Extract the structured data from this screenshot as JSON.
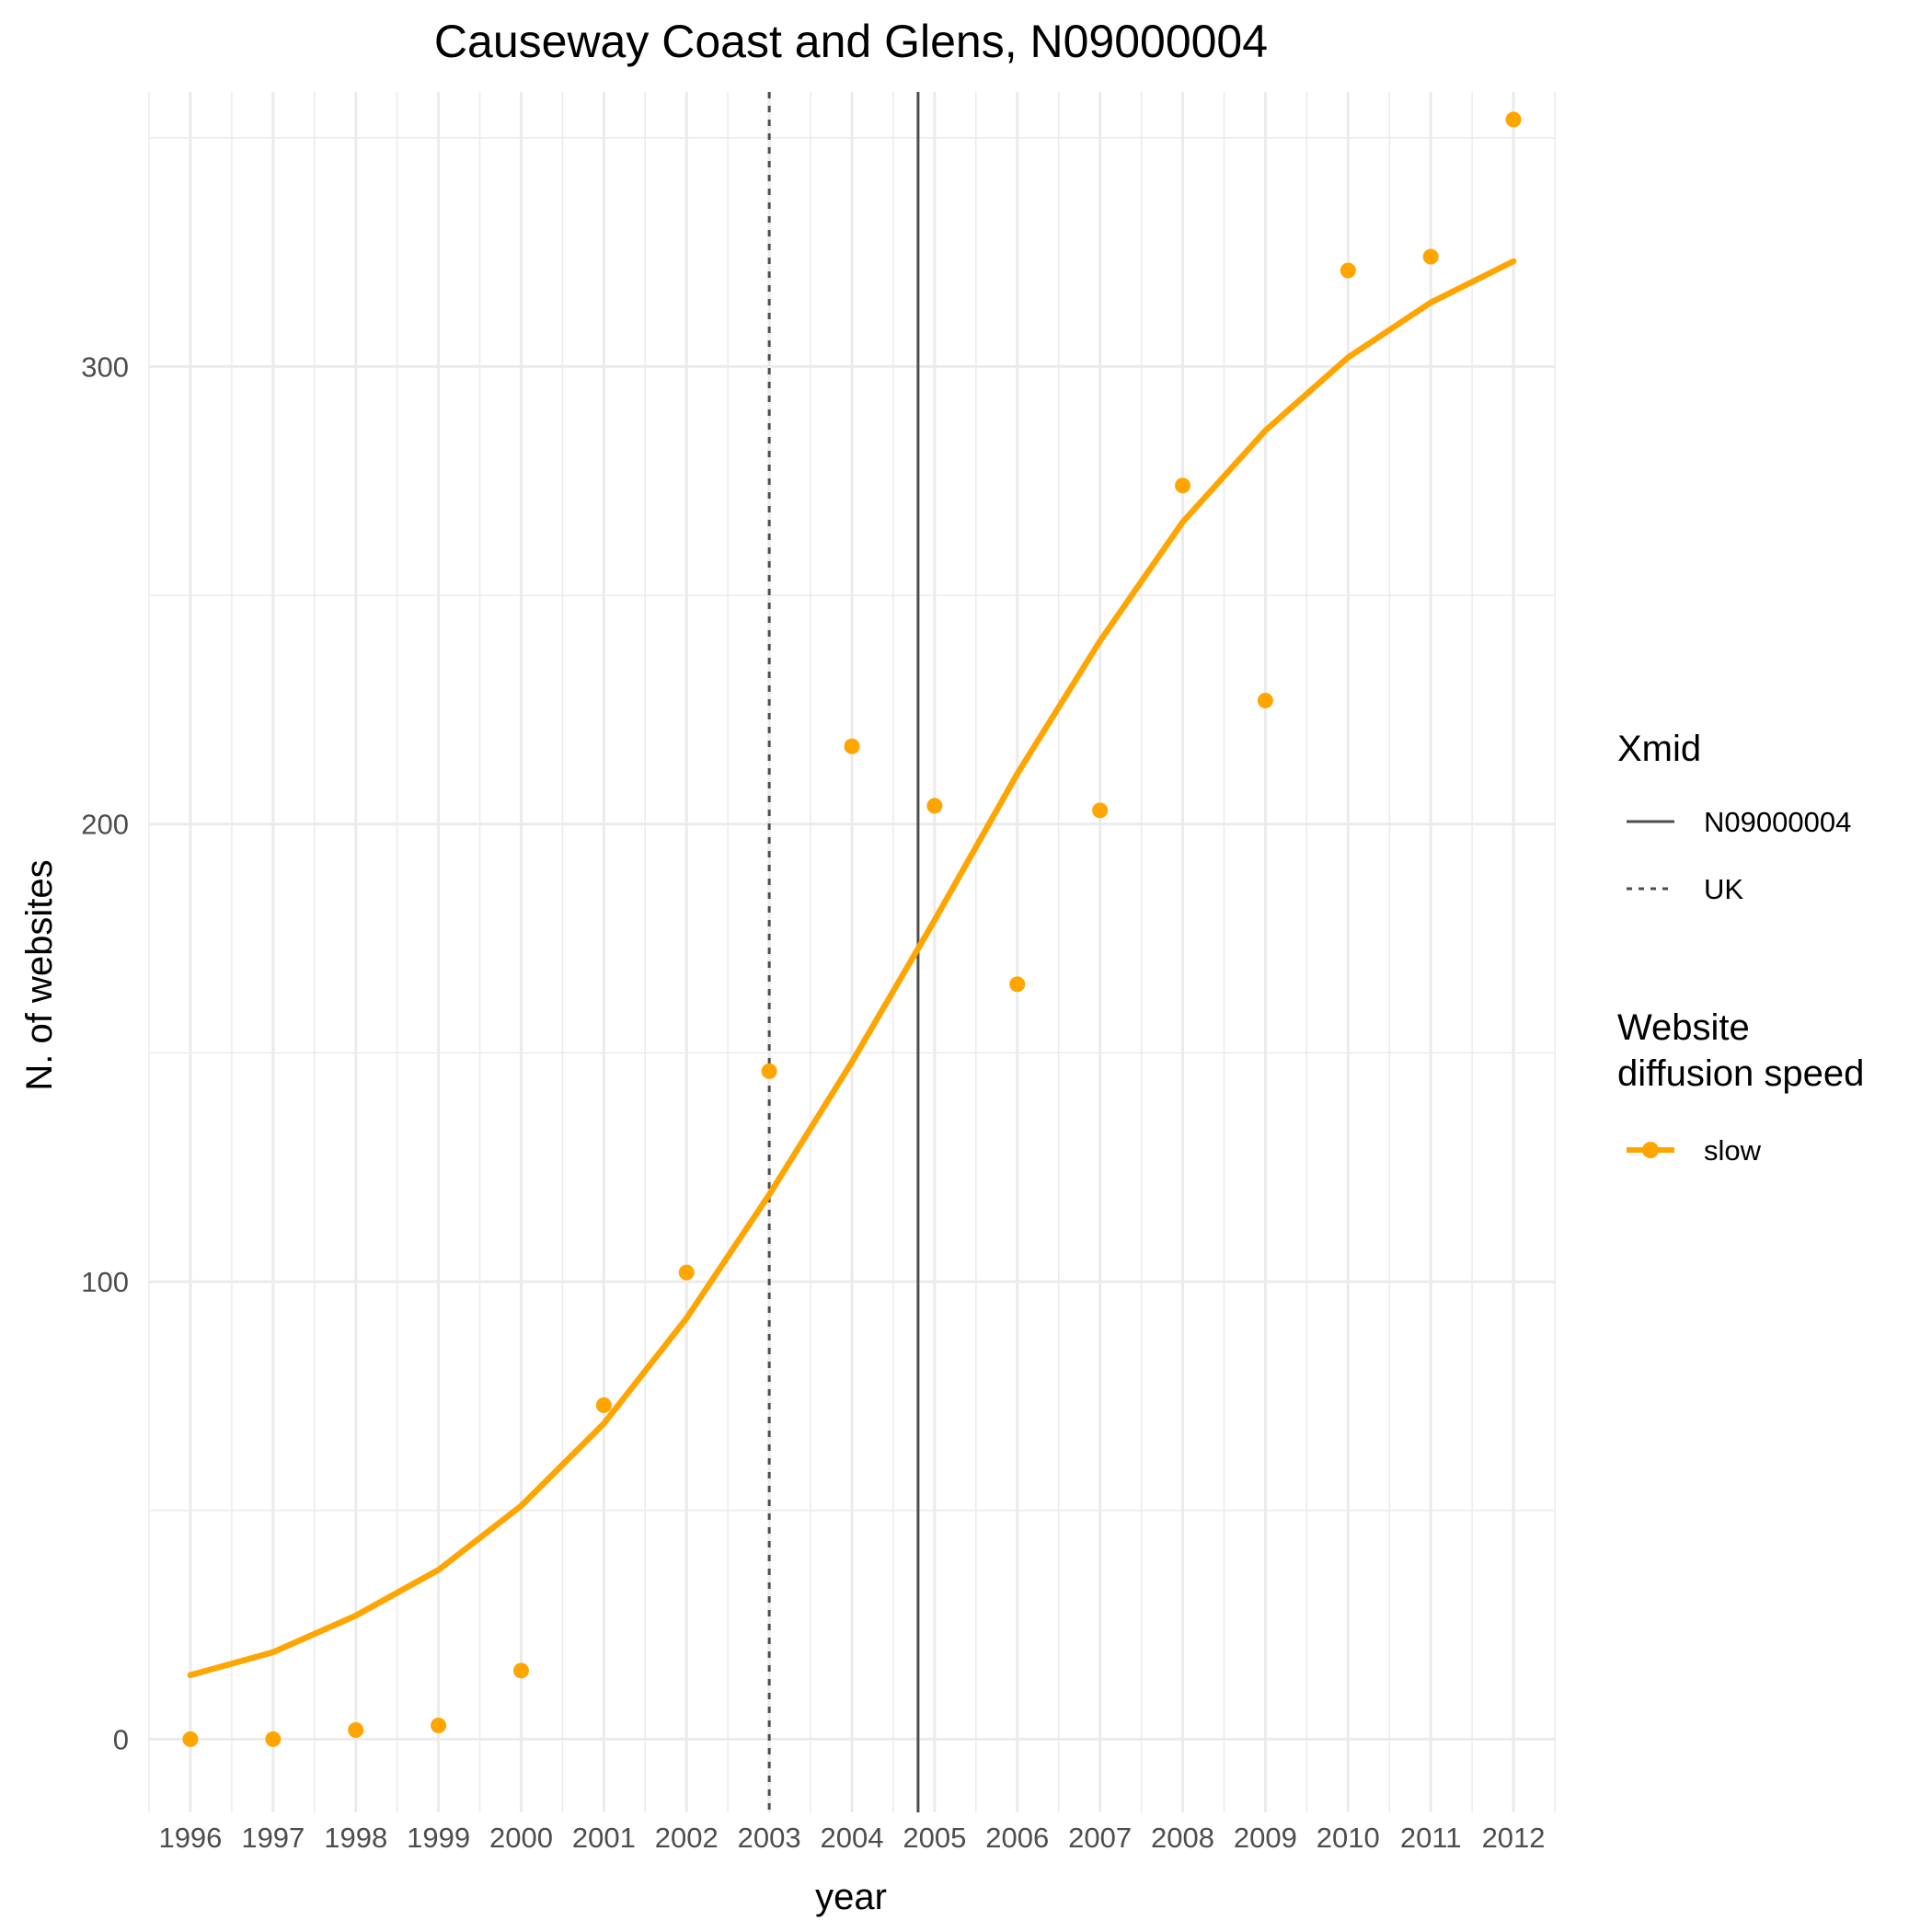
{
  "chart_data": {
    "type": "line",
    "title": "Causeway Coast and Glens, N09000004",
    "xlabel": "year",
    "ylabel": "N. of websites",
    "x": [
      1996,
      1997,
      1998,
      1999,
      2000,
      2001,
      2002,
      2003,
      2004,
      2005,
      2006,
      2007,
      2008,
      2009,
      2010,
      2011,
      2012
    ],
    "x_tick_labels": [
      "1996",
      "1997",
      "1998",
      "1999",
      "2000",
      "2001",
      "2002",
      "2003",
      "2004",
      "2005",
      "2006",
      "2007",
      "2008",
      "2009",
      "2010",
      "2011",
      "2012"
    ],
    "y_ticks": [
      0,
      100,
      200,
      300
    ],
    "y_tick_labels": [
      "0",
      "100",
      "200",
      "300"
    ],
    "xlim": [
      1995.5,
      2012.5
    ],
    "ylim": [
      -16,
      360
    ],
    "grid": true,
    "series": [
      {
        "name": "slow",
        "color": "#FFA500",
        "points": [
          0,
          0,
          2,
          3,
          15,
          73,
          102,
          146,
          217,
          204,
          165,
          203,
          274,
          227,
          321,
          324,
          354
        ],
        "fitted": [
          14,
          19,
          27,
          37,
          51,
          69,
          92,
          119,
          148,
          179,
          211,
          240,
          266,
          286,
          302,
          314,
          323
        ]
      }
    ],
    "vlines": [
      {
        "name": "N09000004",
        "x": 2004.8,
        "style": "solid",
        "color": "#4d4d4d"
      },
      {
        "name": "UK",
        "x": 2003.0,
        "style": "dashed",
        "color": "#4d4d4d"
      }
    ],
    "legend": {
      "placement": "right",
      "xmid_title": "Xmid",
      "xmid_items": [
        "N09000004",
        "UK"
      ],
      "speed_title_line1": "Website",
      "speed_title_line2": "diffusion speed",
      "speed_items": [
        "slow"
      ]
    }
  }
}
